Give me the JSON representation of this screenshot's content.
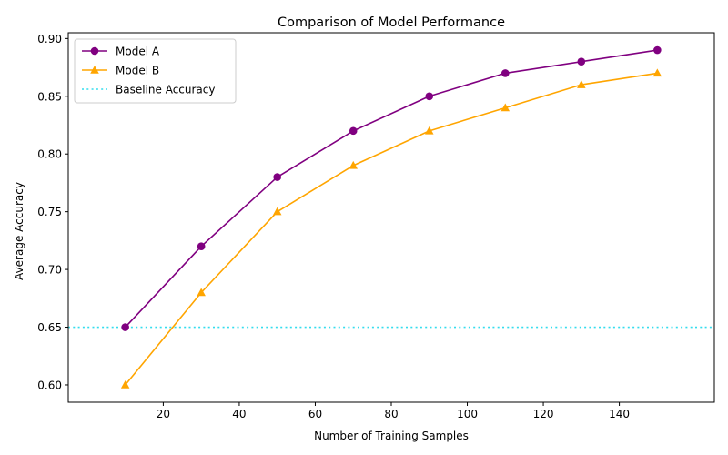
{
  "chart_data": {
    "type": "line",
    "title": "Comparison of Model Performance",
    "xlabel": "Number of Training Samples",
    "ylabel": "Average Accuracy",
    "x": [
      10,
      30,
      50,
      70,
      90,
      110,
      130,
      150
    ],
    "xlim": [
      -5,
      165
    ],
    "ylim": [
      0.585,
      0.905
    ],
    "xticks": [
      20,
      40,
      60,
      80,
      100,
      120,
      140
    ],
    "yticks": [
      0.6,
      0.65,
      0.7,
      0.75,
      0.8,
      0.85,
      0.9
    ],
    "grid": false,
    "legend_position": "upper-left",
    "series": [
      {
        "name": "Model A",
        "values": [
          0.65,
          0.72,
          0.78,
          0.82,
          0.85,
          0.87,
          0.88,
          0.89
        ],
        "color": "#800080",
        "marker": "circle",
        "line_style": "solid"
      },
      {
        "name": "Model B",
        "values": [
          0.6,
          0.68,
          0.75,
          0.79,
          0.82,
          0.84,
          0.86,
          0.87
        ],
        "color": "#FFA500",
        "marker": "triangle",
        "line_style": "solid"
      }
    ],
    "reference_lines": [
      {
        "name": "Baseline Accuracy",
        "orientation": "horizontal",
        "value": 0.65,
        "color": "#33DDEE",
        "line_style": "dotted"
      }
    ]
  }
}
